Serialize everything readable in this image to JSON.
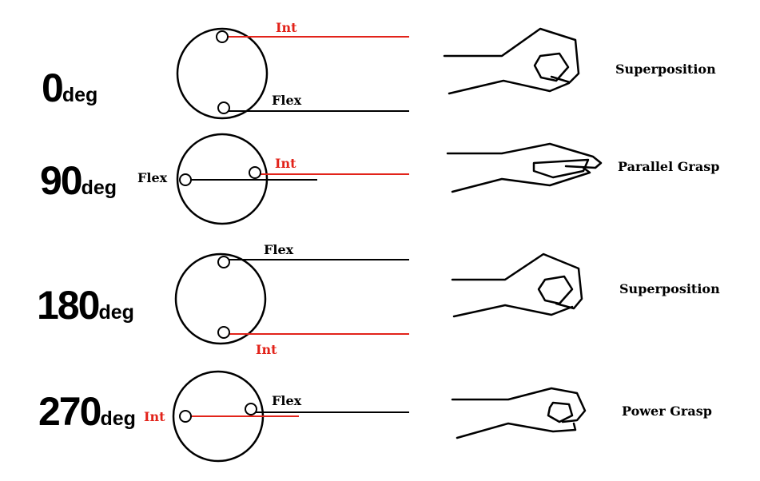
{
  "colors": {
    "int_wire": "#e2231a",
    "flex_wire": "#000000",
    "background": "#ffffff"
  },
  "rows": [
    {
      "angle": "0",
      "unit": "deg",
      "int_label": "Int",
      "flex_label": "Flex",
      "grasp": "Superposition",
      "hand_icon": "pinch-hand-icon"
    },
    {
      "angle": "90",
      "unit": "deg",
      "int_label": "Int",
      "flex_label": "Flex",
      "grasp": "Parallel Grasp",
      "hand_icon": "flat-hand-icon"
    },
    {
      "angle": "180",
      "unit": "deg",
      "int_label": "Int",
      "flex_label": "Flex",
      "grasp": "Superposition",
      "hand_icon": "pinch-hand-icon"
    },
    {
      "angle": "270",
      "unit": "deg",
      "int_label": "Int",
      "flex_label": "Flex",
      "grasp": "Power Grasp",
      "hand_icon": "fist-hand-icon"
    }
  ]
}
